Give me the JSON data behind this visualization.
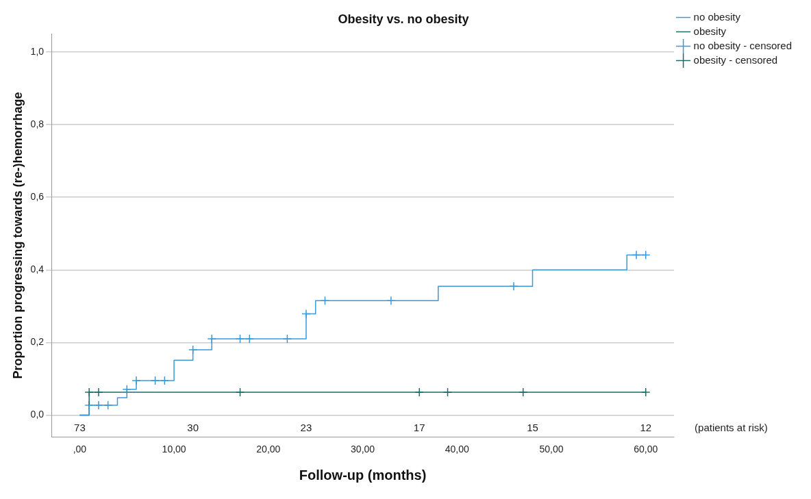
{
  "chart_data": {
    "type": "step",
    "title": "Obesity vs. no obesity",
    "xlabel": "Follow-up (months)",
    "ylabel": "Proportion progressing towards (re-)hemorrhage",
    "xlim": [
      -3,
      63
    ],
    "xticks": [
      {
        "value": 0,
        "label": ",00"
      },
      {
        "value": 10,
        "label": "10,00"
      },
      {
        "value": 20,
        "label": "20,00"
      },
      {
        "value": 30,
        "label": "30,00"
      },
      {
        "value": 40,
        "label": "40,00"
      },
      {
        "value": 50,
        "label": "50,00"
      },
      {
        "value": 60,
        "label": "60,00"
      }
    ],
    "ylim": [
      -0.06,
      1.05
    ],
    "yticks": [
      {
        "value": 0,
        "label": "0,0"
      },
      {
        "value": 0.2,
        "label": "0,2"
      },
      {
        "value": 0.4,
        "label": "0,4"
      },
      {
        "value": 0.6,
        "label": "0,6"
      },
      {
        "value": 0.8,
        "label": "0,8"
      },
      {
        "value": 1,
        "label": "1,0"
      }
    ],
    "grid": "y",
    "legend": "right",
    "series": [
      {
        "name": "no obesity",
        "marker": "none",
        "color": "#3a9ad9",
        "x": [
          0,
          1,
          4,
          5,
          6,
          10,
          12,
          14,
          24,
          25,
          38,
          48,
          58,
          60
        ],
        "values": [
          0,
          0.027,
          0.048,
          0.071,
          0.095,
          0.151,
          0.18,
          0.21,
          0.279,
          0.315,
          0.355,
          0.4,
          0.441,
          0.441
        ]
      },
      {
        "name": "obesity",
        "marker": "none",
        "color": "#1f6b6b",
        "x": [
          0,
          1,
          60
        ],
        "values": [
          0,
          0.063,
          0.063
        ]
      },
      {
        "name": "no obesity - censored",
        "type": "scatter",
        "marker": "cross",
        "color": "#3a9ad9",
        "x": [
          1,
          2,
          3,
          5,
          6,
          8,
          9,
          12,
          14,
          17,
          18,
          22,
          24,
          26,
          33,
          46,
          59,
          60
        ],
        "values": [
          0.027,
          0.027,
          0.027,
          0.071,
          0.095,
          0.095,
          0.095,
          0.18,
          0.21,
          0.21,
          0.21,
          0.21,
          0.279,
          0.315,
          0.315,
          0.355,
          0.441,
          0.441
        ]
      },
      {
        "name": "obesity - censored",
        "type": "scatter",
        "marker": "cross",
        "color": "#1f6b6b",
        "x": [
          1,
          2,
          17,
          36,
          39,
          47,
          60
        ],
        "values": [
          0.063,
          0.063,
          0.063,
          0.063,
          0.063,
          0.063,
          0.063
        ]
      }
    ],
    "annotations": [
      "73",
      "30",
      "23",
      "17",
      "15",
      "12",
      "(patients at risk)"
    ]
  }
}
